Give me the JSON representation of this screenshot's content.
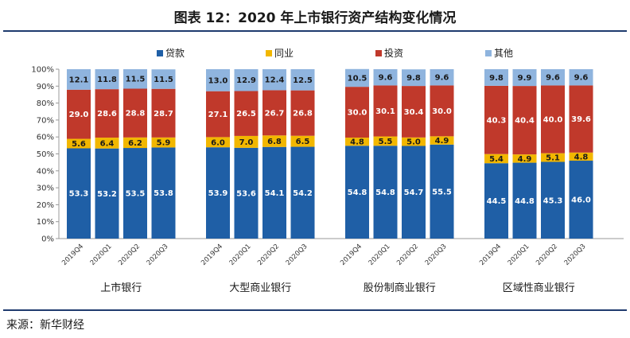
{
  "title": "图表 12：2020 年上市银行资产结构变化情况",
  "source": "来源：新华财经",
  "chart_data": {
    "type": "bar",
    "stacked": true,
    "percent": true,
    "ylim": [
      0,
      100
    ],
    "yticks": [
      "0%",
      "10%",
      "20%",
      "30%",
      "40%",
      "50%",
      "60%",
      "70%",
      "80%",
      "90%",
      "100%"
    ],
    "legend_position": "top",
    "groups": [
      "上市银行",
      "大型商业银行",
      "股份制商业银行",
      "区域性商业银行"
    ],
    "periods": [
      "2019Q4",
      "2020Q1",
      "2020Q2",
      "2020Q3"
    ],
    "series": [
      {
        "name": "贷款",
        "color": "#1f5fa6",
        "values": [
          [
            53.3,
            53.2,
            53.5,
            53.8
          ],
          [
            53.9,
            53.6,
            54.1,
            54.2
          ],
          [
            54.8,
            54.8,
            54.7,
            55.5
          ],
          [
            44.5,
            44.8,
            45.3,
            46.0
          ]
        ],
        "labels": [
          [
            "53.3",
            "53.2",
            "53.5",
            "53.8"
          ],
          [
            "53.9",
            "53.6",
            "54.1",
            "54.2"
          ],
          [
            "54.8",
            "54.8",
            "54.7",
            "55.5"
          ],
          [
            "44.5",
            "44.8",
            "45.3",
            "46.0"
          ]
        ]
      },
      {
        "name": "同业",
        "color": "#f2b700",
        "values": [
          [
            5.6,
            6.4,
            6.2,
            5.9
          ],
          [
            6.0,
            7.0,
            6.8,
            6.5
          ],
          [
            4.8,
            5.5,
            5.0,
            4.9
          ],
          [
            5.4,
            4.9,
            5.1,
            4.8
          ]
        ],
        "labels": [
          [
            "5.6",
            "6.4",
            "6.2",
            "5.9"
          ],
          [
            "6.0",
            "7.0",
            "6.8",
            "6.5"
          ],
          [
            "4.8",
            "5.5",
            "5.0",
            "4.9"
          ],
          [
            "5.4",
            "4.9",
            "5.1",
            "4.8"
          ]
        ]
      },
      {
        "name": "投资",
        "color": "#c0392b",
        "values": [
          [
            29.0,
            28.6,
            28.8,
            28.7
          ],
          [
            27.1,
            26.5,
            26.7,
            26.8
          ],
          [
            30.0,
            30.1,
            30.4,
            30.0
          ],
          [
            40.3,
            40.4,
            40.0,
            39.6
          ]
        ],
        "labels": [
          [
            "29.0",
            "28.6",
            "28.8",
            "28.7"
          ],
          [
            "27.1",
            "26.5",
            "26.7",
            "26.8"
          ],
          [
            "30.0",
            "30.1",
            "30.4",
            "30.0"
          ],
          [
            "40.3",
            "40.4",
            "40.0",
            "39.6"
          ]
        ]
      },
      {
        "name": "其他",
        "color": "#8fb4de",
        "values": [
          [
            12.1,
            11.8,
            11.5,
            11.5
          ],
          [
            13.0,
            12.9,
            12.4,
            12.5
          ],
          [
            10.5,
            9.6,
            9.8,
            9.6
          ],
          [
            9.8,
            9.9,
            9.6,
            9.6
          ]
        ],
        "labels": [
          [
            "12.1",
            "11.8",
            "11.5",
            "11.5"
          ],
          [
            "13.0",
            "12.9",
            "12.4",
            "12.5"
          ],
          [
            "10.5",
            "9.6",
            "9.8",
            "9.6"
          ],
          [
            "9.8",
            "9.9",
            "9.6",
            "9.6"
          ]
        ]
      }
    ]
  }
}
